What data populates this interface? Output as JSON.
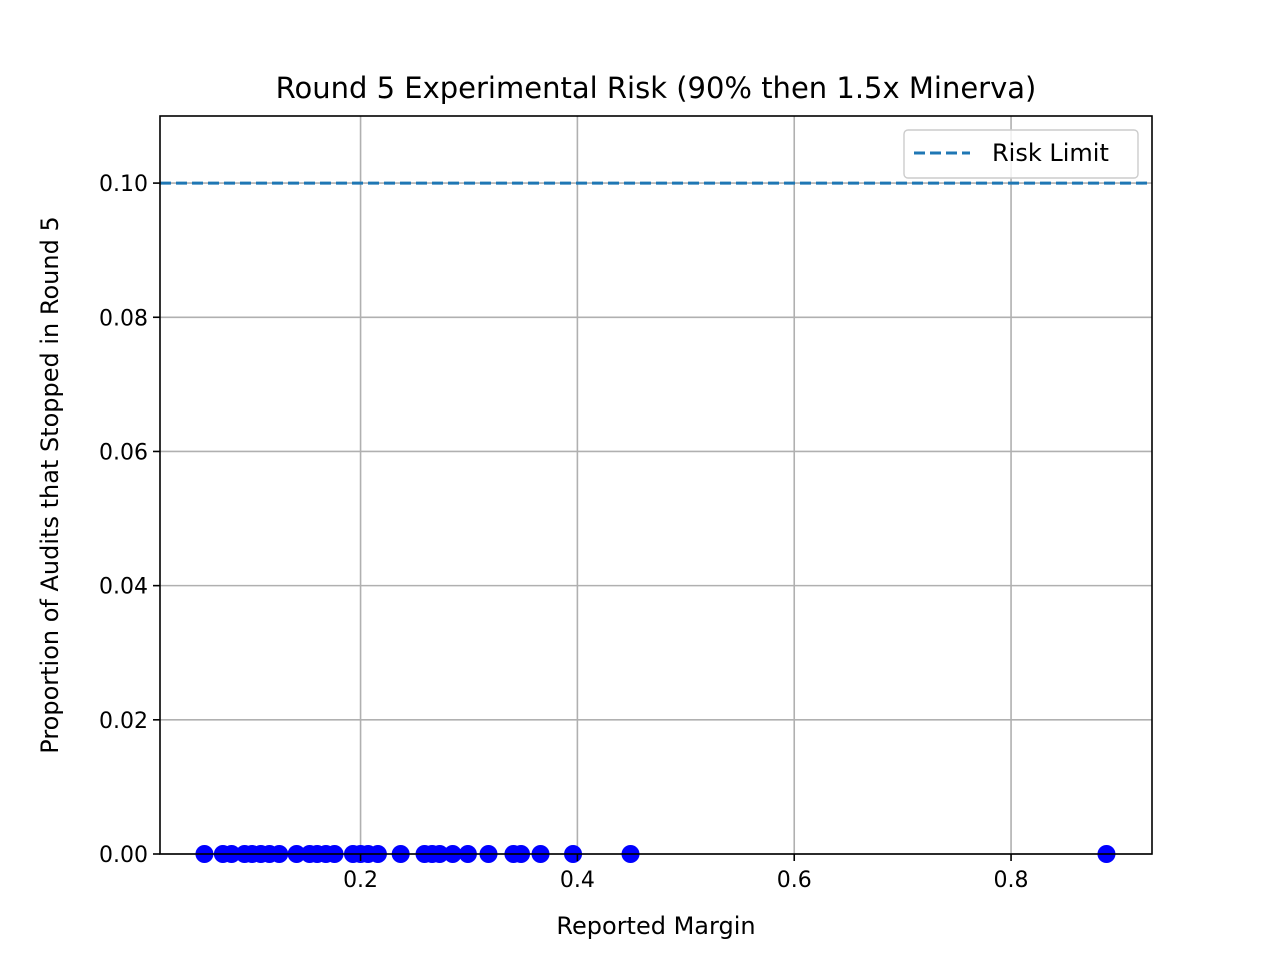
{
  "chart_data": {
    "type": "scatter",
    "title": "Round 5 Experimental Risk (90% then 1.5x Minerva)",
    "xlabel": "Reported Margin",
    "ylabel": "Proportion of Audits that Stopped in Round 5",
    "xlim": [
      0.015,
      0.93
    ],
    "ylim": [
      0.0,
      0.11
    ],
    "xticks": [
      0.2,
      0.4,
      0.6,
      0.8
    ],
    "xtick_labels": [
      "0.2",
      "0.4",
      "0.6",
      "0.8"
    ],
    "yticks": [
      0.0,
      0.02,
      0.04,
      0.06,
      0.08,
      0.1
    ],
    "ytick_labels": [
      "0.00",
      "0.02",
      "0.04",
      "0.06",
      "0.08",
      "0.10"
    ],
    "grid": true,
    "legend": {
      "placement": "top-right",
      "entries": [
        "Risk Limit"
      ]
    },
    "risk_limit": {
      "name": "Risk Limit",
      "y": 0.1,
      "color": "#1f77b4",
      "style": "dashed"
    },
    "series": [
      {
        "color": "#0000ff",
        "points": [
          {
            "x": 0.056,
            "y": 0.0
          },
          {
            "x": 0.073,
            "y": 0.0
          },
          {
            "x": 0.081,
            "y": 0.0
          },
          {
            "x": 0.093,
            "y": 0.0
          },
          {
            "x": 0.1,
            "y": 0.0
          },
          {
            "x": 0.108,
            "y": 0.0
          },
          {
            "x": 0.116,
            "y": 0.0
          },
          {
            "x": 0.125,
            "y": 0.0
          },
          {
            "x": 0.141,
            "y": 0.0
          },
          {
            "x": 0.153,
            "y": 0.0
          },
          {
            "x": 0.16,
            "y": 0.0
          },
          {
            "x": 0.168,
            "y": 0.0
          },
          {
            "x": 0.176,
            "y": 0.0
          },
          {
            "x": 0.193,
            "y": 0.0
          },
          {
            "x": 0.2,
            "y": 0.0
          },
          {
            "x": 0.207,
            "y": 0.0
          },
          {
            "x": 0.216,
            "y": 0.0
          },
          {
            "x": 0.237,
            "y": 0.0
          },
          {
            "x": 0.259,
            "y": 0.0
          },
          {
            "x": 0.266,
            "y": 0.0
          },
          {
            "x": 0.273,
            "y": 0.0
          },
          {
            "x": 0.285,
            "y": 0.0
          },
          {
            "x": 0.299,
            "y": 0.0
          },
          {
            "x": 0.318,
            "y": 0.0
          },
          {
            "x": 0.341,
            "y": 0.0
          },
          {
            "x": 0.348,
            "y": 0.0
          },
          {
            "x": 0.366,
            "y": 0.0
          },
          {
            "x": 0.396,
            "y": 0.0
          },
          {
            "x": 0.449,
            "y": 0.0
          },
          {
            "x": 0.888,
            "y": 0.0
          }
        ]
      }
    ]
  }
}
